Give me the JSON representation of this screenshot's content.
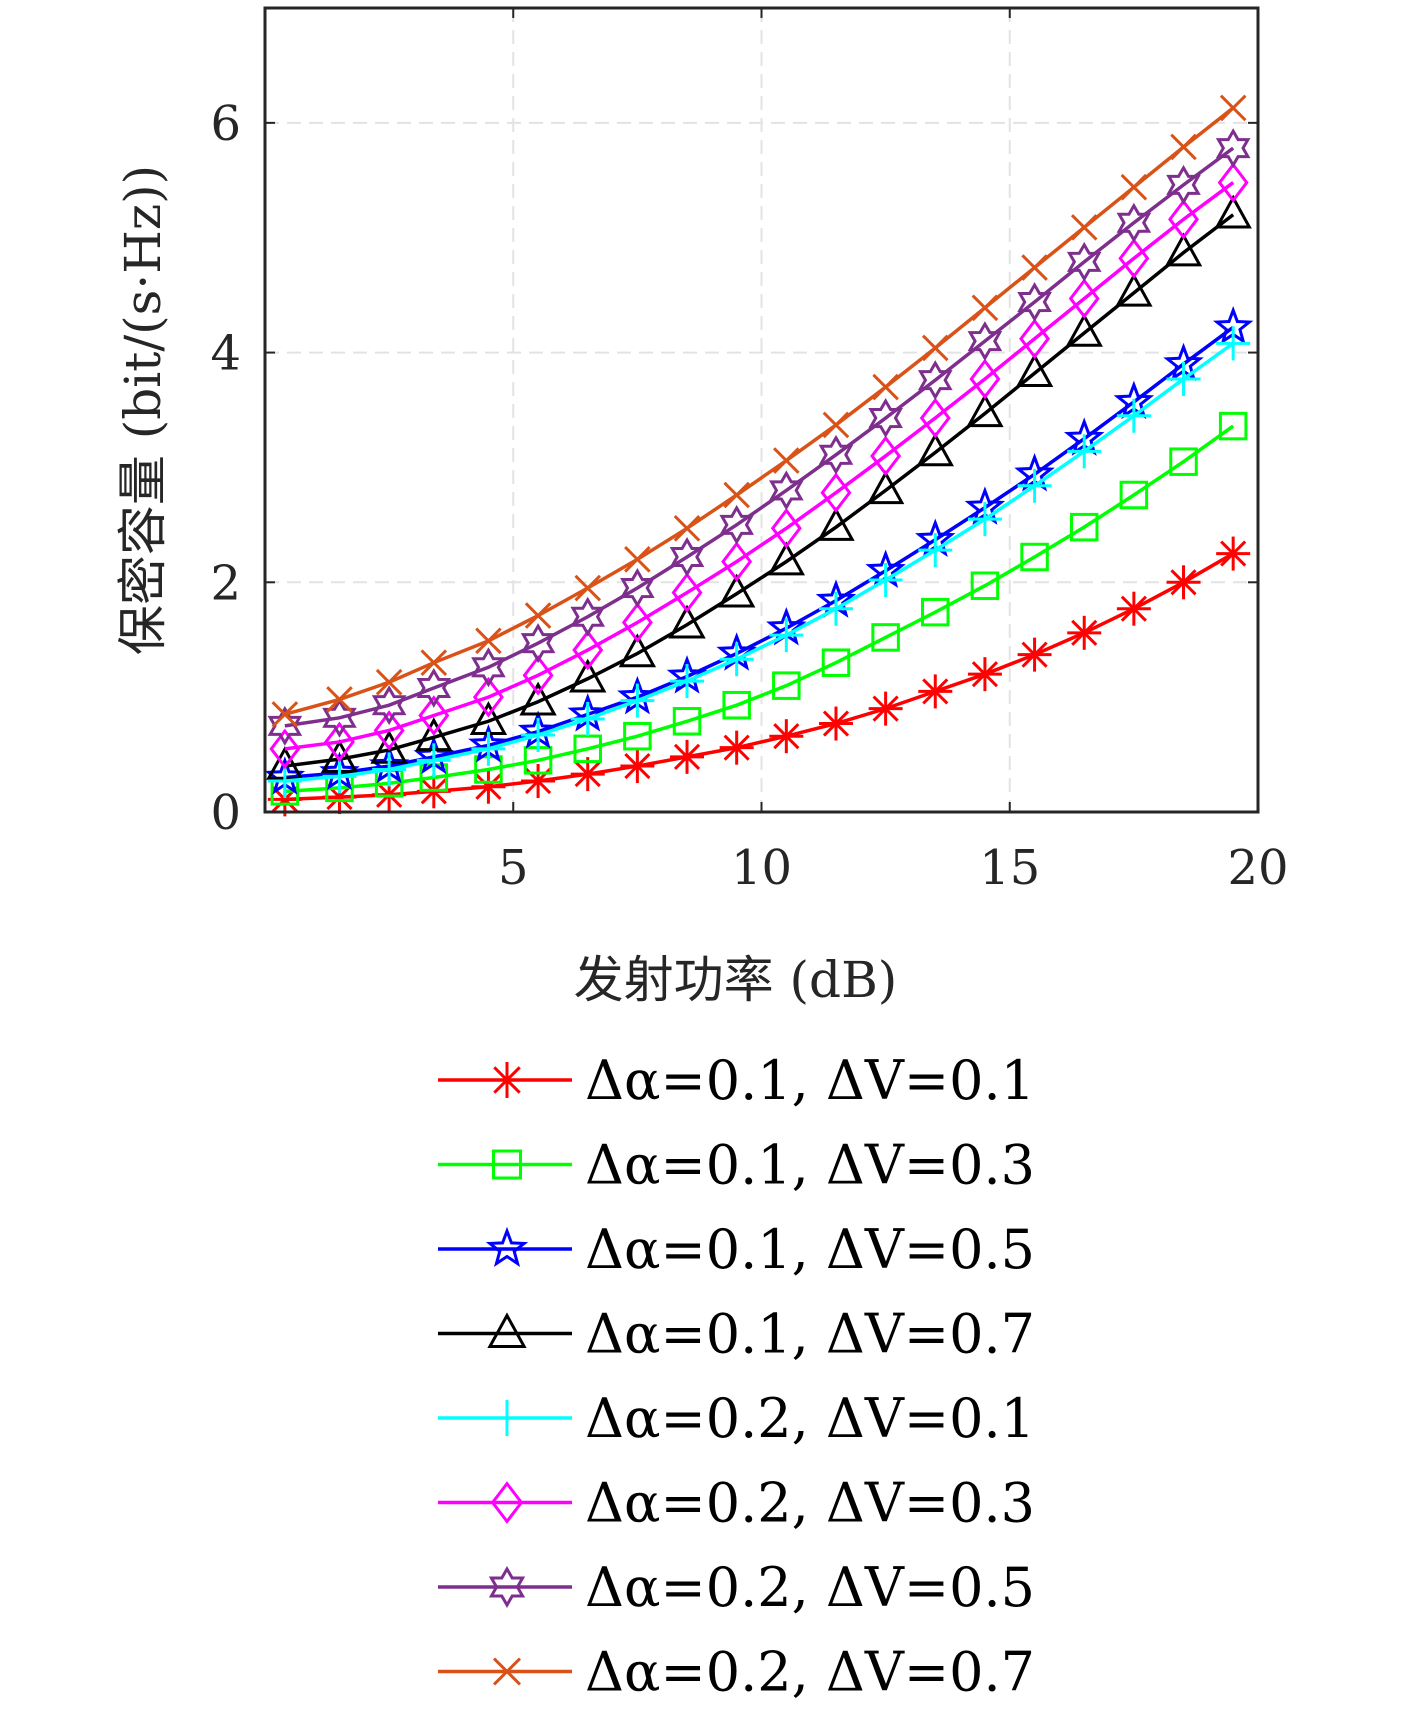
{
  "chart_data": {
    "type": "line",
    "title": "",
    "xlabel": "发射功率 (dB)",
    "ylabel": "保密容量 (bit/(s·Hz))",
    "xlim": [
      0,
      20
    ],
    "ylim": [
      0,
      7
    ],
    "grid": true,
    "legend_position": "below",
    "x_ticks": [
      5,
      10,
      15,
      20
    ],
    "y_ticks": [
      0,
      2,
      4,
      6
    ],
    "x": [
      0.4,
      1.5,
      2.5,
      3.4,
      4.5,
      5.5,
      6.5,
      7.5,
      8.5,
      9.5,
      10.5,
      11.5,
      12.5,
      13.5,
      14.5,
      15.5,
      16.5,
      17.5,
      18.5,
      19.5
    ],
    "series": [
      {
        "name": "Δα=0.1, ΔV=0.1",
        "color": "#ff0000",
        "marker": "asterisk",
        "values": [
          0.11,
          0.13,
          0.15,
          0.18,
          0.22,
          0.27,
          0.33,
          0.4,
          0.48,
          0.56,
          0.66,
          0.77,
          0.9,
          1.05,
          1.2,
          1.37,
          1.56,
          1.77,
          2.0,
          2.25
        ]
      },
      {
        "name": "Δα=0.1, ΔV=0.3",
        "color": "#00ff00",
        "marker": "square",
        "values": [
          0.18,
          0.21,
          0.25,
          0.3,
          0.37,
          0.45,
          0.55,
          0.66,
          0.79,
          0.93,
          1.1,
          1.3,
          1.52,
          1.74,
          1.97,
          2.22,
          2.48,
          2.76,
          3.05,
          3.36
        ]
      },
      {
        "name": "Δα=0.1, ΔV=0.5",
        "color": "#0000ff",
        "marker": "pentagram",
        "values": [
          0.3,
          0.34,
          0.4,
          0.48,
          0.58,
          0.7,
          0.85,
          1.0,
          1.18,
          1.38,
          1.6,
          1.84,
          2.1,
          2.37,
          2.65,
          2.94,
          3.25,
          3.57,
          3.9,
          4.22
        ]
      },
      {
        "name": "Δα=0.1, ΔV=0.7",
        "color": "#000000",
        "marker": "triangle",
        "values": [
          0.4,
          0.46,
          0.54,
          0.65,
          0.79,
          0.96,
          1.16,
          1.38,
          1.63,
          1.9,
          2.18,
          2.48,
          2.8,
          3.13,
          3.47,
          3.82,
          4.17,
          4.52,
          4.87,
          5.2
        ]
      },
      {
        "name": "Δα=0.2, ΔV=0.1",
        "color": "#00ffff",
        "marker": "plus",
        "values": [
          0.27,
          0.31,
          0.37,
          0.45,
          0.55,
          0.67,
          0.81,
          0.97,
          1.14,
          1.33,
          1.54,
          1.77,
          2.02,
          2.28,
          2.55,
          2.84,
          3.14,
          3.45,
          3.77,
          4.08
        ]
      },
      {
        "name": "Δα=0.2, ΔV=0.3",
        "color": "#ff00ff",
        "marker": "diamond",
        "values": [
          0.55,
          0.61,
          0.71,
          0.84,
          1.0,
          1.19,
          1.41,
          1.65,
          1.91,
          2.18,
          2.47,
          2.78,
          3.1,
          3.43,
          3.77,
          4.12,
          4.47,
          4.82,
          5.16,
          5.48
        ]
      },
      {
        "name": "Δα=0.2, ΔV=0.5",
        "color": "#7e2f8e",
        "marker": "hexagram",
        "values": [
          0.75,
          0.82,
          0.93,
          1.08,
          1.26,
          1.47,
          1.7,
          1.95,
          2.22,
          2.5,
          2.8,
          3.11,
          3.43,
          3.76,
          4.1,
          4.44,
          4.79,
          5.13,
          5.46,
          5.78
        ]
      },
      {
        "name": "Δα=0.2, ΔV=0.7",
        "color": "#d95319",
        "marker": "x",
        "values": [
          0.85,
          0.98,
          1.13,
          1.3,
          1.49,
          1.71,
          1.95,
          2.2,
          2.47,
          2.76,
          3.06,
          3.37,
          3.7,
          4.04,
          4.39,
          4.74,
          5.09,
          5.44,
          5.79,
          6.13
        ]
      }
    ]
  }
}
